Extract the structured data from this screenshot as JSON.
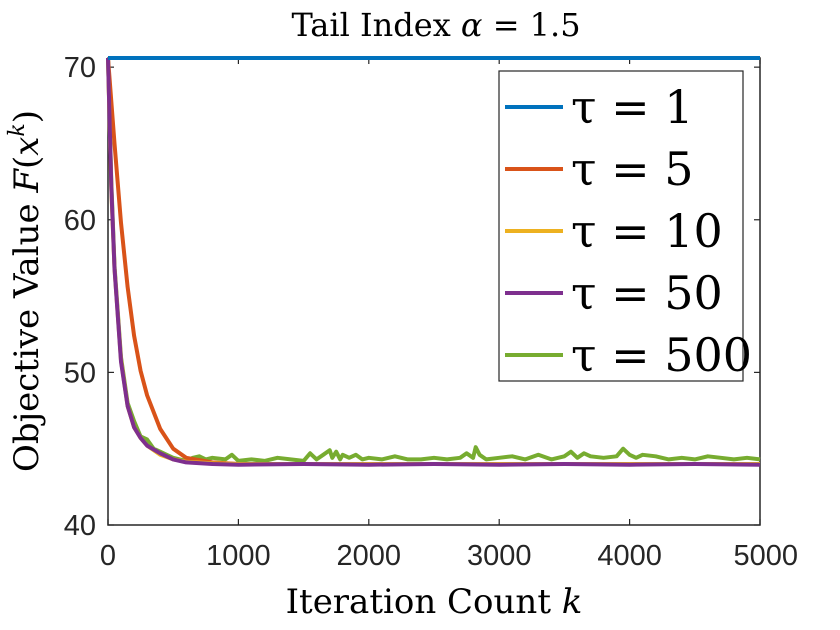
{
  "chart_data": {
    "type": "line",
    "title": "Tail Index α = 1.5",
    "xlabel": "Iteration Count k",
    "ylabel": "Objective Value F(x^k)",
    "xlim": [
      0,
      5000
    ],
    "ylim": [
      40,
      70.6
    ],
    "xticks": [
      0,
      1000,
      2000,
      3000,
      4000,
      5000
    ],
    "yticks": [
      40,
      50,
      60,
      70
    ],
    "grid": false,
    "legend_position": "top-right",
    "series": [
      {
        "name": "τ = 1",
        "color": "#0072BD",
        "x": [
          0,
          5000
        ],
        "y": [
          70.6,
          70.6
        ]
      },
      {
        "name": "τ = 5",
        "color": "#D95319",
        "x": [
          0,
          50,
          100,
          150,
          200,
          250,
          300,
          400,
          500,
          600,
          800,
          1000,
          1500,
          2000,
          3000,
          4000,
          5000
        ],
        "y": [
          70.6,
          65.0,
          59.8,
          55.6,
          52.4,
          50.1,
          48.5,
          46.3,
          45.0,
          44.4,
          44.1,
          44.0,
          44.0,
          44.0,
          44.0,
          44.0,
          44.0
        ]
      },
      {
        "name": "τ = 10",
        "color": "#EDB120",
        "x": [
          0,
          25,
          50,
          100,
          150,
          200,
          250,
          300,
          400,
          500,
          600,
          800,
          1000,
          1500,
          2000,
          3000,
          4000,
          5000
        ],
        "y": [
          70.6,
          62.0,
          56.8,
          50.8,
          47.8,
          46.4,
          45.7,
          45.2,
          44.6,
          44.3,
          44.15,
          44.05,
          44.0,
          44.0,
          44.0,
          44.0,
          44.0,
          44.0
        ]
      },
      {
        "name": "τ = 50",
        "color": "#7E2F8E",
        "x": [
          0,
          25,
          50,
          100,
          150,
          200,
          250,
          300,
          400,
          500,
          600,
          800,
          1000,
          1500,
          2000,
          2500,
          3000,
          3500,
          4000,
          4500,
          5000
        ],
        "y": [
          70.6,
          62.2,
          56.8,
          50.7,
          47.8,
          46.4,
          45.7,
          45.2,
          44.7,
          44.3,
          44.1,
          44.0,
          43.95,
          44.0,
          43.95,
          44.0,
          43.95,
          44.0,
          43.95,
          44.0,
          43.95
        ]
      },
      {
        "name": "τ = 500",
        "color": "#77AC30",
        "x": [
          0,
          25,
          50,
          100,
          150,
          200,
          250,
          300,
          350,
          400,
          450,
          500,
          550,
          600,
          650,
          700,
          750,
          800,
          900,
          950,
          1000,
          1100,
          1200,
          1300,
          1400,
          1500,
          1550,
          1600,
          1650,
          1700,
          1720,
          1750,
          1780,
          1800,
          1850,
          1900,
          1950,
          2000,
          2100,
          2200,
          2300,
          2400,
          2500,
          2600,
          2700,
          2750,
          2800,
          2820,
          2850,
          2900,
          3000,
          3100,
          3200,
          3300,
          3400,
          3500,
          3550,
          3600,
          3650,
          3700,
          3800,
          3900,
          3950,
          4000,
          4050,
          4100,
          4200,
          4300,
          4400,
          4500,
          4600,
          4700,
          4800,
          4900,
          5000
        ],
        "y": [
          70.6,
          62.5,
          57.0,
          51.0,
          48.0,
          46.8,
          45.8,
          45.6,
          45.0,
          44.8,
          44.6,
          44.4,
          44.3,
          44.2,
          44.4,
          44.5,
          44.3,
          44.4,
          44.3,
          44.6,
          44.2,
          44.3,
          44.2,
          44.4,
          44.3,
          44.2,
          44.7,
          44.3,
          44.6,
          44.9,
          44.4,
          44.8,
          44.3,
          44.6,
          44.4,
          44.6,
          44.3,
          44.4,
          44.3,
          44.5,
          44.3,
          44.3,
          44.4,
          44.3,
          44.4,
          44.7,
          44.4,
          45.1,
          44.6,
          44.3,
          44.4,
          44.5,
          44.3,
          44.6,
          44.3,
          44.5,
          44.8,
          44.4,
          44.7,
          44.5,
          44.4,
          44.5,
          45.0,
          44.6,
          44.4,
          44.6,
          44.5,
          44.3,
          44.4,
          44.3,
          44.5,
          44.4,
          44.3,
          44.4,
          44.3
        ]
      }
    ]
  }
}
